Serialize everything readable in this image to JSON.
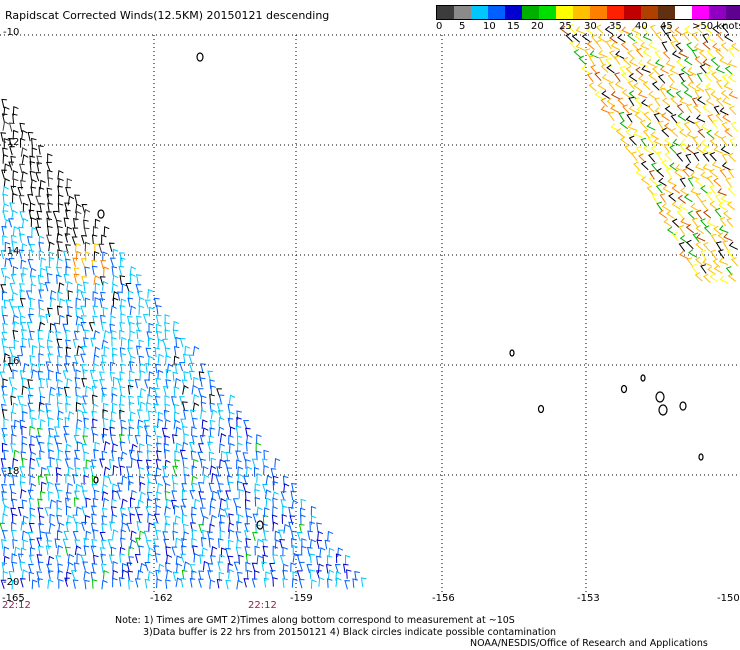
{
  "title": "Rapidscat Corrected Winds(12.5KM) 20150121 descending",
  "legend": {
    "colors": [
      "#3c3c3c",
      "#8a8a8a",
      "#00c8ff",
      "#0060ff",
      "#0000d0",
      "#00b000",
      "#00e000",
      "#ffff00",
      "#ffc000",
      "#ff8000",
      "#ff2000",
      "#c00000",
      "#b04000",
      "#603010",
      "#ffffff",
      "#ff00ff",
      "#9000c0",
      "#600090"
    ],
    "labels": [
      "0",
      "5",
      "10",
      "15",
      "20",
      "25",
      "30",
      "35",
      "40",
      "45",
      ">50 knots"
    ]
  },
  "axes": {
    "lon_labels": [
      "-165",
      "-162",
      "-159",
      "-156",
      "-153",
      "-150"
    ],
    "lat_labels": [
      "-10",
      "-12",
      "-14",
      "-16",
      "-18",
      "-20"
    ]
  },
  "times": [
    "22:12",
    "22:12"
  ],
  "notes": [
    "Note: 1) Times are GMT 2)Times along bottom correspond to measurement at ~10S",
    "3)Data buffer is 22 hrs from 20150121 4) Black circles indicate possible contamination",
    "NOAA/NESDIS/Office of Research and Applications"
  ]
}
